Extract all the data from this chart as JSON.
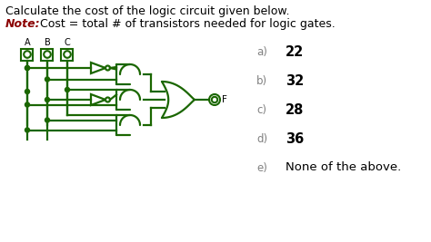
{
  "title_line1": "Calculate the cost of the logic circuit given below.",
  "title_line2_italic": "Note:",
  "title_line2_normal": "  Cost = total # of transistors needed for logic gates.",
  "options": [
    {
      "label": "a)",
      "value": "22"
    },
    {
      "label": "b)",
      "value": "32"
    },
    {
      "label": "c)",
      "value": "28"
    },
    {
      "label": "d)",
      "value": "36"
    },
    {
      "label": "e)",
      "value": "None of the above."
    }
  ],
  "gate_color": "#1a6600",
  "wire_color": "#1a6600",
  "bg_color": "#ffffff",
  "text_color": "#000000",
  "note_color": "#8b0000",
  "label_color": "#808080",
  "value_color": "#000000",
  "fig_w": 4.74,
  "fig_h": 2.67,
  "dpi": 100
}
